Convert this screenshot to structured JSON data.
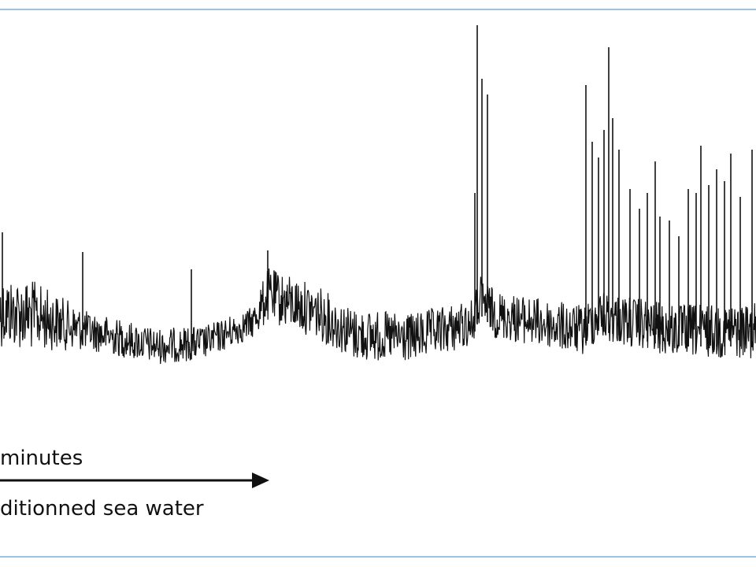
{
  "labels": {
    "duration": "minutes",
    "condition": "ditionned sea water"
  }
}
